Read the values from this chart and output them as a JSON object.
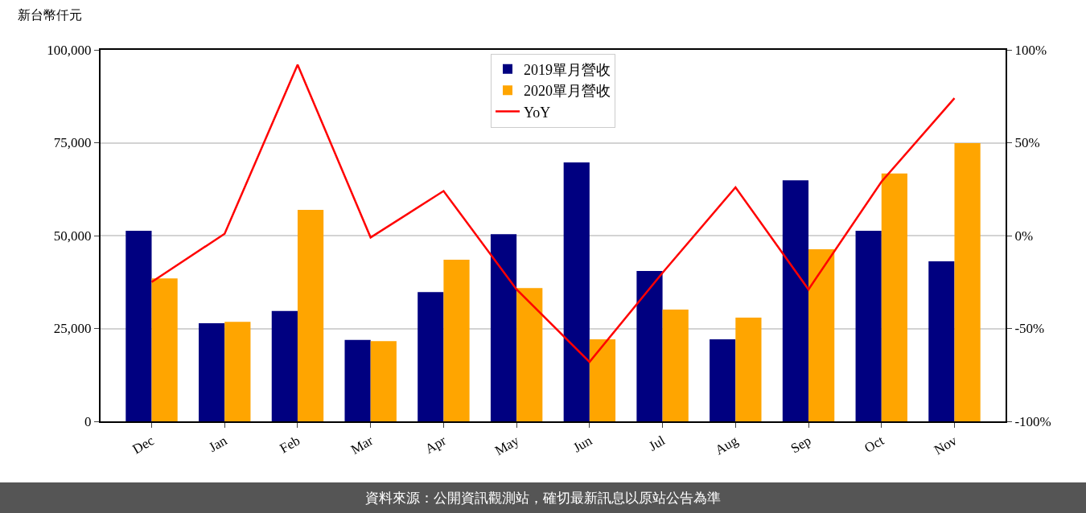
{
  "chart_data": {
    "type": "bar",
    "ylabel": "新台幣仟元",
    "categories": [
      "Dec",
      "Jan",
      "Feb",
      "Mar",
      "Apr",
      "May",
      "Jun",
      "Jul",
      "Aug",
      "Sep",
      "Oct",
      "Nov"
    ],
    "series": [
      {
        "name": "2019單月營收",
        "color": "#000080",
        "values": [
          51300,
          26400,
          29700,
          21900,
          34800,
          50400,
          69700,
          40500,
          22100,
          64900,
          51300,
          43100
        ]
      },
      {
        "name": "2020單月營收",
        "color": "#ffa500",
        "values": [
          38500,
          26800,
          56900,
          21600,
          43500,
          35900,
          22100,
          30100,
          27900,
          46300,
          66700,
          74900
        ]
      },
      {
        "name": "YoY",
        "type": "line",
        "axis": "y2",
        "color": "#ff0000",
        "values": [
          -25,
          1,
          92,
          -1,
          24,
          -29,
          -68,
          -20,
          26,
          -29,
          29,
          74
        ]
      }
    ],
    "ylim": [
      0,
      100000
    ],
    "yticks": [
      {
        "value": 0,
        "label": "0"
      },
      {
        "value": 25000,
        "label": "25,000"
      },
      {
        "value": 50000,
        "label": "50,000"
      },
      {
        "value": 75000,
        "label": "75,000"
      },
      {
        "value": 100000,
        "label": "100,000"
      }
    ],
    "y2lim": [
      -100,
      100
    ],
    "y2ticks": [
      {
        "value": -100,
        "label": "-100%"
      },
      {
        "value": -50,
        "label": "-50%"
      },
      {
        "value": 0,
        "label": "0%"
      },
      {
        "value": 50,
        "label": "50%"
      },
      {
        "value": 100,
        "label": "100%"
      }
    ],
    "grid": "y",
    "legend": "top",
    "marker": "none",
    "line_style": "solid",
    "annotations": [
      "資料來源：公開資訊觀測站，確切最新訊息以原站公告為準"
    ]
  }
}
